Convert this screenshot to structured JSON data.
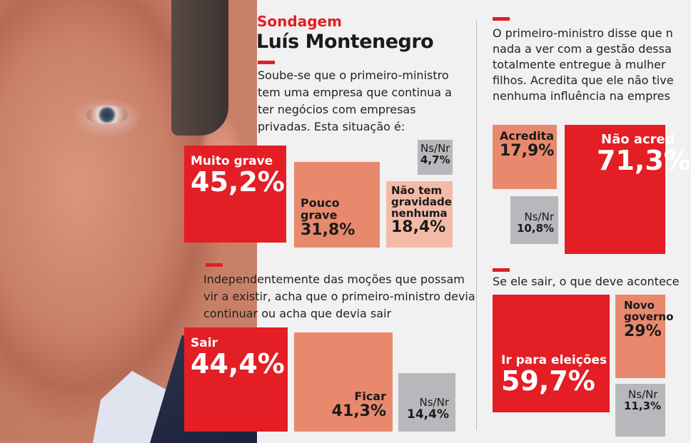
{
  "header": {
    "kicker": "Sondagem",
    "title": "Luís Montenegro"
  },
  "chart_data": [
    {
      "type": "table",
      "title": "Soube-se que o primeiro-ministro tem uma empresa que continua a ter negócios com empresas privadas. Esta situação é:",
      "question_lines": [
        "Soube-se que o primeiro-ministro",
        "tem uma empresa que continua a",
        "ter negócios com empresas",
        "privadas. Esta situação é:"
      ],
      "categories": [
        "Muito grave",
        "Pouco grave",
        "Não tem gravidade nenhuma",
        "Ns/Nr"
      ],
      "values": [
        45.2,
        31.8,
        18.4,
        4.7
      ],
      "labels": [
        "45,2%",
        "31,8%",
        "18,4%",
        "4,7%"
      ]
    },
    {
      "type": "table",
      "title": "Independentemente das moções que possam vir a existir, acha que o primeiro-ministro devia continuar ou acha que devia sair",
      "question_lines": [
        "Independentemente das moções que possam",
        "vir a existir, acha que o primeiro-ministro devia",
        "continuar ou acha que devia sair"
      ],
      "categories": [
        "Sair",
        "Ficar",
        "Ns/Nr"
      ],
      "values": [
        44.4,
        41.3,
        14.4
      ],
      "labels": [
        "44,4%",
        "41,3%",
        "14,4%"
      ]
    },
    {
      "type": "table",
      "question_lines": [
        "O primeiro-ministro disse que n",
        "nada a ver com a gestão dessa",
        "totalmente entregue à mulher",
        "filhos. Acredita que ele não tive",
        "nenhuma influência na empres"
      ],
      "categories": [
        "Acredita",
        "Não acred",
        "Ns/Nr"
      ],
      "values": [
        17.9,
        71.3,
        10.8
      ],
      "labels": [
        "17,9%",
        "71,3%",
        "10,8%"
      ]
    },
    {
      "type": "table",
      "question_lines": [
        "Se ele sair, o que deve acontece"
      ],
      "categories": [
        "Ir para eleições",
        "Novo governo",
        "Ns/Nr"
      ],
      "values": [
        59.7,
        29,
        11.3
      ],
      "labels": [
        "59,7%",
        "29%",
        "11,3%"
      ]
    }
  ]
}
